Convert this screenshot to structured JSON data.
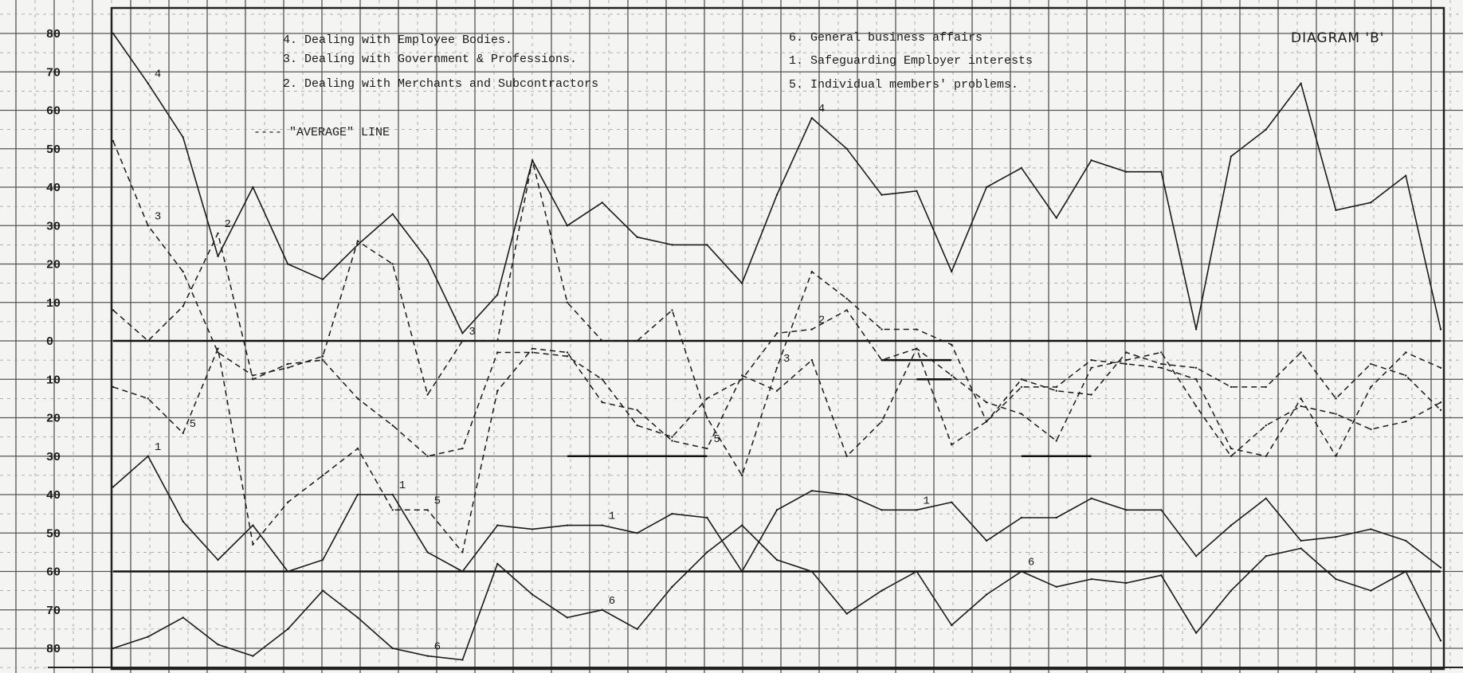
{
  "chart_data": {
    "type": "line",
    "title": "DIAGRAM 'B'",
    "xlabel": "",
    "ylabel": "",
    "ylim": [
      -80,
      80
    ],
    "y_ticks": [
      {
        "value": 80,
        "label": "80"
      },
      {
        "value": 70,
        "label": "70"
      },
      {
        "value": 60,
        "label": "60"
      },
      {
        "value": 50,
        "label": "50"
      },
      {
        "value": 40,
        "label": "40"
      },
      {
        "value": 30,
        "label": "30"
      },
      {
        "value": 20,
        "label": "20"
      },
      {
        "value": 10,
        "label": "10"
      },
      {
        "value": 0,
        "label": "0"
      },
      {
        "value": -10,
        "label": "10"
      },
      {
        "value": -20,
        "label": "20"
      },
      {
        "value": -30,
        "label": "30"
      },
      {
        "value": -40,
        "label": "40"
      },
      {
        "value": -50,
        "label": "50"
      },
      {
        "value": -60,
        "label": "60"
      },
      {
        "value": -70,
        "label": "70"
      },
      {
        "value": -80,
        "label": "80"
      }
    ],
    "grid": true,
    "legend_position": "top",
    "legend": [
      "4. Dealing with Employee Bodies.",
      "3. Dealing with Government & Professions.",
      "2. Dealing with Merchants and Subcontractors",
      "6. General business affairs",
      "1. Safeguarding Employer interests",
      "5. Individual members' problems."
    ],
    "average_line_label": "---- \"AVERAGE\" LINE",
    "series": [
      {
        "name": "4",
        "style": "solid",
        "values": [
          80,
          67,
          53,
          22,
          40,
          20,
          16,
          25,
          33,
          21,
          2,
          12,
          47,
          30,
          36,
          27,
          25,
          25,
          15,
          38,
          58,
          50,
          38,
          39,
          18,
          40,
          45,
          32,
          47,
          44,
          44,
          3,
          48,
          55,
          67,
          34,
          36,
          43,
          3
        ]
      },
      {
        "name": "3",
        "style": "dashed",
        "values": [
          52,
          30,
          18,
          -3,
          -9,
          -7,
          -4,
          26,
          20,
          -14,
          0,
          0,
          47,
          10,
          0,
          0,
          8,
          -20,
          -35,
          -7,
          18,
          11,
          3,
          3,
          -1,
          -21,
          -10,
          -13,
          -14,
          -3,
          -6,
          -7,
          -12,
          -12,
          -3,
          -15,
          -6,
          -9,
          -18
        ]
      },
      {
        "name": "2",
        "style": "dashed",
        "values": [
          8,
          0,
          9,
          28,
          -10,
          -6,
          -5,
          -15,
          -22,
          -30,
          -28,
          -3,
          -3,
          -4,
          -10,
          -22,
          -25,
          -15,
          -10,
          2,
          3,
          8,
          -5,
          -2,
          -27,
          -21,
          -12,
          -12,
          -5,
          -6,
          -7,
          -10,
          -28,
          -30,
          -15,
          -30,
          -12,
          -3,
          -7
        ]
      },
      {
        "name": "5",
        "style": "dashed",
        "values": [
          -12,
          -15,
          -24,
          -2,
          -53,
          -42,
          -35,
          -28,
          -44,
          -44,
          -55,
          -13,
          -2,
          -3,
          -16,
          -18,
          -26,
          -28,
          -9,
          -13,
          -5,
          -30,
          -21,
          -2,
          -9,
          -16,
          -19,
          -26,
          -7,
          -5,
          -3,
          -17,
          -30,
          -22,
          -17,
          -19,
          -23,
          -21,
          -16
        ]
      },
      {
        "name": "1",
        "style": "solid",
        "values": [
          -38,
          -30,
          -47,
          -57,
          -48,
          -60,
          -57,
          -40,
          -40,
          -55,
          -60,
          -48,
          -49,
          -48,
          -48,
          -50,
          -45,
          -46,
          -60,
          -44,
          -39,
          -40,
          -44,
          -44,
          -42,
          -52,
          -46,
          -46,
          -41,
          -44,
          -44,
          -56,
          -48,
          -41,
          -52,
          -51,
          -49,
          -52,
          -59
        ]
      },
      {
        "name": "6",
        "style": "solid",
        "values": [
          -80,
          -77,
          -72,
          -79,
          -82,
          -75,
          -65,
          -72,
          -80,
          -82,
          -83,
          -58,
          -66,
          -72,
          -70,
          -75,
          -64,
          -55,
          -48,
          -57,
          -60,
          -71,
          -65,
          -60,
          -74,
          -66,
          -60,
          -64,
          -62,
          -63,
          -61,
          -76,
          -65,
          -56,
          -54,
          -62,
          -65,
          -60,
          -78
        ]
      }
    ],
    "series_labels": [
      {
        "text": "4",
        "series": "4",
        "index": 20
      },
      {
        "text": "4",
        "series": "4",
        "index": 1
      },
      {
        "text": "3",
        "series": "3",
        "index": 1
      },
      {
        "text": "3",
        "series": "3",
        "index": 10
      },
      {
        "text": "3",
        "series": "3",
        "index": 19
      },
      {
        "text": "2",
        "series": "2",
        "index": 3
      },
      {
        "text": "2",
        "series": "2",
        "index": 20
      },
      {
        "text": "5",
        "series": "5",
        "index": 2
      },
      {
        "text": "5",
        "series": "5",
        "index": 9
      },
      {
        "text": "5",
        "series": "5",
        "index": 17
      },
      {
        "text": "1",
        "series": "1",
        "index": 1
      },
      {
        "text": "1",
        "series": "1",
        "index": 8
      },
      {
        "text": "1",
        "series": "1",
        "index": 14
      },
      {
        "text": "1",
        "series": "1",
        "index": 23
      },
      {
        "text": "6",
        "series": "6",
        "index": 9
      },
      {
        "text": "6",
        "series": "6",
        "index": 14
      },
      {
        "text": "6",
        "series": "6",
        "index": 26
      }
    ],
    "average_segments": [
      {
        "y": 0,
        "from": 0,
        "to": 38
      },
      {
        "y": -30,
        "from": 13,
        "to": 17
      },
      {
        "y": -30,
        "from": 26,
        "to": 28
      },
      {
        "y": -5,
        "from": 22,
        "to": 24
      },
      {
        "y": -60,
        "from": 0,
        "to": 38
      },
      {
        "y": -10,
        "from": 23,
        "to": 24
      }
    ]
  }
}
